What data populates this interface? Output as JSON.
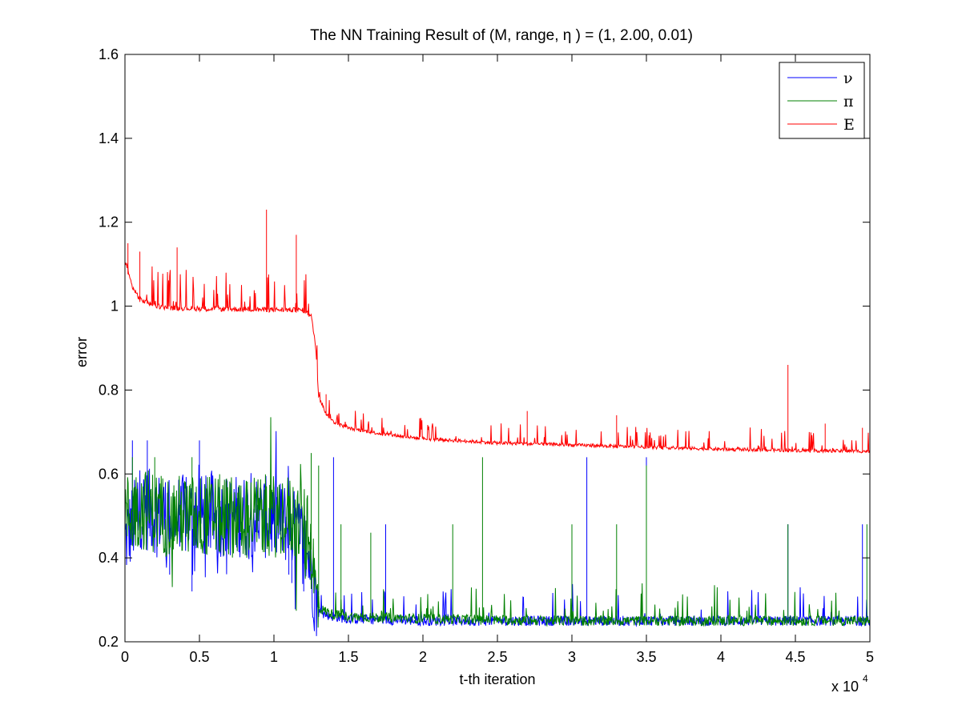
{
  "chart_data": {
    "type": "line",
    "title": "The NN Training Result of (M, range, η ) = (1, 2.00, 0.01)",
    "xlabel": "t-th iteration",
    "ylabel": "error",
    "x_multiplier": {
      "prefix": "x 10",
      "exponent": "4"
    },
    "xlim": [
      0,
      5
    ],
    "ylim": [
      0.2,
      1.6
    ],
    "x_ticks": [
      0,
      0.5,
      1,
      1.5,
      2,
      2.5,
      3,
      3.5,
      4,
      4.5,
      5
    ],
    "x_tick_labels": [
      "0",
      "0.5",
      "1",
      "1.5",
      "2",
      "2.5",
      "3",
      "3.5",
      "4",
      "4.5",
      "5"
    ],
    "y_ticks": [
      0.2,
      0.4,
      0.6,
      0.8,
      1,
      1.2,
      1.4,
      1.6
    ],
    "y_tick_labels": [
      "0.2",
      "0.4",
      "0.6",
      "0.8",
      "1",
      "1.2",
      "1.4",
      "1.6"
    ],
    "grid": false,
    "legend_position": "top-right",
    "series": [
      {
        "name": "ν",
        "color": "#0000ff",
        "x": [
          0,
          0.1,
          0.3,
          0.5,
          0.7,
          0.9,
          1.1,
          1.2,
          1.25,
          1.28,
          1.3,
          1.4,
          1.5,
          2,
          2.5,
          3,
          3.5,
          4,
          4.5,
          5
        ],
        "y": [
          0.44,
          0.52,
          0.5,
          0.5,
          0.5,
          0.5,
          0.48,
          0.44,
          0.38,
          0.3,
          0.27,
          0.26,
          0.255,
          0.25,
          0.25,
          0.25,
          0.25,
          0.25,
          0.25,
          0.25
        ],
        "spikes": [
          [
            0.05,
            0.68
          ],
          [
            0.15,
            0.68
          ],
          [
            0.3,
            0.36
          ],
          [
            0.45,
            0.32
          ],
          [
            0.5,
            0.68
          ],
          [
            1.1,
            0.36
          ],
          [
            1.12,
            0.34
          ],
          [
            1.2,
            0.32
          ],
          [
            1.4,
            0.64
          ],
          [
            1.75,
            0.48
          ],
          [
            3.1,
            0.64
          ],
          [
            3.5,
            0.64
          ],
          [
            4.45,
            0.48
          ],
          [
            4.95,
            0.48
          ]
        ]
      },
      {
        "name": "π",
        "color": "#008000",
        "x": [
          0,
          0.1,
          0.3,
          0.5,
          0.7,
          0.9,
          1.1,
          1.2,
          1.25,
          1.28,
          1.3,
          1.4,
          1.5,
          2,
          2.5,
          3,
          3.5,
          4,
          4.5,
          5
        ],
        "y": [
          0.5,
          0.52,
          0.5,
          0.5,
          0.5,
          0.5,
          0.5,
          0.48,
          0.42,
          0.32,
          0.28,
          0.265,
          0.26,
          0.255,
          0.252,
          0.25,
          0.25,
          0.25,
          0.25,
          0.25
        ],
        "spikes": [
          [
            0.05,
            0.64
          ],
          [
            0.2,
            0.64
          ],
          [
            0.45,
            0.64
          ],
          [
            1.25,
            0.65
          ],
          [
            1.3,
            0.62
          ],
          [
            1.45,
            0.48
          ],
          [
            1.65,
            0.46
          ],
          [
            2.2,
            0.48
          ],
          [
            2.4,
            0.64
          ],
          [
            3.0,
            0.48
          ],
          [
            3.3,
            0.48
          ],
          [
            3.5,
            0.62
          ],
          [
            4.45,
            0.48
          ],
          [
            4.98,
            0.48
          ]
        ]
      },
      {
        "name": "E",
        "color": "#ff0000",
        "x": [
          0,
          0.05,
          0.1,
          0.2,
          0.3,
          0.5,
          0.7,
          0.9,
          1.1,
          1.2,
          1.25,
          1.28,
          1.3,
          1.35,
          1.4,
          1.5,
          1.75,
          2,
          2.5,
          3,
          3.5,
          4,
          4.5,
          5
        ],
        "y": [
          1.1,
          1.04,
          1.01,
          0.995,
          0.99,
          0.988,
          0.987,
          0.986,
          0.985,
          0.984,
          0.97,
          0.9,
          0.78,
          0.74,
          0.72,
          0.705,
          0.69,
          0.68,
          0.67,
          0.665,
          0.66,
          0.655,
          0.652,
          0.65
        ],
        "spikes": [
          [
            0.02,
            1.15
          ],
          [
            0.1,
            1.13
          ],
          [
            0.35,
            1.14
          ],
          [
            0.95,
            1.23
          ],
          [
            1.15,
            1.17
          ],
          [
            1.35,
            0.79
          ],
          [
            2.7,
            0.75
          ],
          [
            3.3,
            0.74
          ],
          [
            4.45,
            0.86
          ],
          [
            4.7,
            0.72
          ],
          [
            4.95,
            0.71
          ]
        ]
      }
    ]
  }
}
